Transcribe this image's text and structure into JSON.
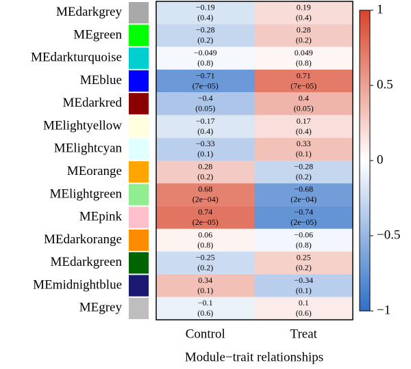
{
  "chart_data": {
    "type": "heatmap",
    "xlabel": "Module−trait relationships",
    "rows": [
      "MEdarkgrey",
      "MEgreen",
      "MEdarkturquoise",
      "MEblue",
      "MEdarkred",
      "MElightyellow",
      "MElightcyan",
      "MEorange",
      "MElightgreen",
      "MEpink",
      "MEdarkorange",
      "MEdarkgreen",
      "MEmidnightblue",
      "MEgrey"
    ],
    "row_colors": [
      "#a9a9a9",
      "#00ff00",
      "#00ced1",
      "#0000ff",
      "#8b0000",
      "#ffffe0",
      "#e0ffff",
      "#ffa500",
      "#90ee90",
      "#ffc0cb",
      "#ff8c00",
      "#006400",
      "#191970",
      "#bebebe"
    ],
    "columns": [
      "Control",
      "Treat"
    ],
    "values": [
      [
        -0.19,
        0.19
      ],
      [
        -0.28,
        0.28
      ],
      [
        -0.049,
        0.049
      ],
      [
        -0.71,
        0.71
      ],
      [
        -0.4,
        0.4
      ],
      [
        -0.17,
        0.17
      ],
      [
        -0.33,
        0.33
      ],
      [
        0.28,
        -0.28
      ],
      [
        0.68,
        -0.68
      ],
      [
        0.74,
        -0.74
      ],
      [
        0.06,
        -0.06
      ],
      [
        -0.25,
        0.25
      ],
      [
        0.34,
        -0.34
      ],
      [
        -0.1,
        0.1
      ]
    ],
    "value_labels": [
      [
        "−0.19",
        "0.19"
      ],
      [
        "−0.28",
        "0.28"
      ],
      [
        "−0.049",
        "0.049"
      ],
      [
        "−0.71",
        "0.71"
      ],
      [
        "−0.4",
        "0.4"
      ],
      [
        "−0.17",
        "0.17"
      ],
      [
        "−0.33",
        "0.33"
      ],
      [
        "0.28",
        "−0.28"
      ],
      [
        "0.68",
        "−0.68"
      ],
      [
        "0.74",
        "−0.74"
      ],
      [
        "0.06",
        "−0.06"
      ],
      [
        "−0.25",
        "0.25"
      ],
      [
        "0.34",
        "−0.34"
      ],
      [
        "−0.1",
        "0.1"
      ]
    ],
    "pvalue_labels": [
      [
        "(0.4)",
        "(0.4)"
      ],
      [
        "(0.2)",
        "(0.2)"
      ],
      [
        "(0.8)",
        "(0.8)"
      ],
      [
        "(7e−05)",
        "(7e−05)"
      ],
      [
        "(0.05)",
        "(0.05)"
      ],
      [
        "(0.4)",
        "(0.4)"
      ],
      [
        "(0.1)",
        "(0.1)"
      ],
      [
        "(0.2)",
        "(0.2)"
      ],
      [
        "(2e−04)",
        "(2e−04)"
      ],
      [
        "(2e−05)",
        "(2e−05)"
      ],
      [
        "(0.8)",
        "(0.8)"
      ],
      [
        "(0.2)",
        "(0.2)"
      ],
      [
        "(0.1)",
        "(0.1)"
      ],
      [
        "(0.6)",
        "(0.6)"
      ]
    ],
    "zlim": [
      -1,
      1
    ],
    "zticks": [
      {
        "value": -1,
        "label": "−1"
      },
      {
        "value": -0.5,
        "label": "−0.5"
      },
      0,
      0.5,
      1
    ],
    "colorscale": [
      "#2f6fc6",
      "#ffffff",
      "#d8452b"
    ]
  }
}
